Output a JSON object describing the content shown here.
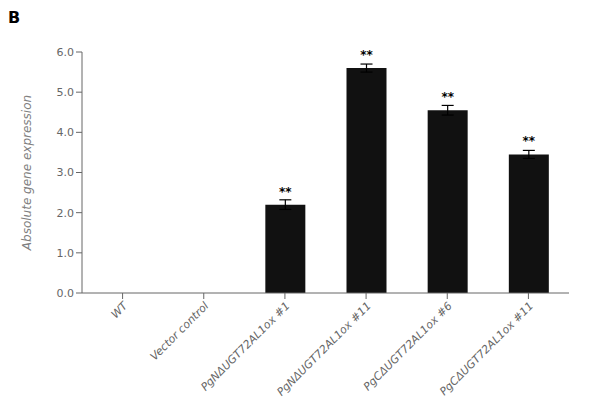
{
  "chart_data": {
    "type": "bar",
    "title": "B",
    "ylabel": "Absolute gene expression",
    "categories": [
      "WT",
      "Vector control",
      "PgNΔUGT72AL1ox #1",
      "PgNΔUGT72AL1ox #11",
      "PgCΔUGT72AL1ox #6",
      "PgCΔUGT72AL1ox #11"
    ],
    "values": [
      0.0,
      0.0,
      2.2,
      5.6,
      4.55,
      3.45
    ],
    "errors": [
      0.0,
      0.0,
      0.12,
      0.1,
      0.12,
      0.1
    ],
    "color": "#111111",
    "annotations": [
      {
        "category": "PgNΔUGT72AL1ox #1",
        "text": "**"
      },
      {
        "category": "PgNΔUGT72AL1ox #11",
        "text": "**"
      },
      {
        "category": "PgCΔUGT72AL1ox #6",
        "text": "**"
      },
      {
        "category": "PgCΔUGT72AL1ox #11",
        "text": "**"
      }
    ],
    "ylim": [
      0,
      6.0
    ],
    "yticks": [
      {
        "value": 0.0,
        "label": "0.0"
      },
      {
        "value": 1.0,
        "label": "1.0"
      },
      {
        "value": 2.0,
        "label": "2.0"
      },
      {
        "value": 3.0,
        "label": "3.0"
      },
      {
        "value": 4.0,
        "label": "4.0"
      },
      {
        "value": 5.0,
        "label": "5.0"
      },
      {
        "value": 6.0,
        "label": "6.0"
      }
    ],
    "grid": false
  }
}
